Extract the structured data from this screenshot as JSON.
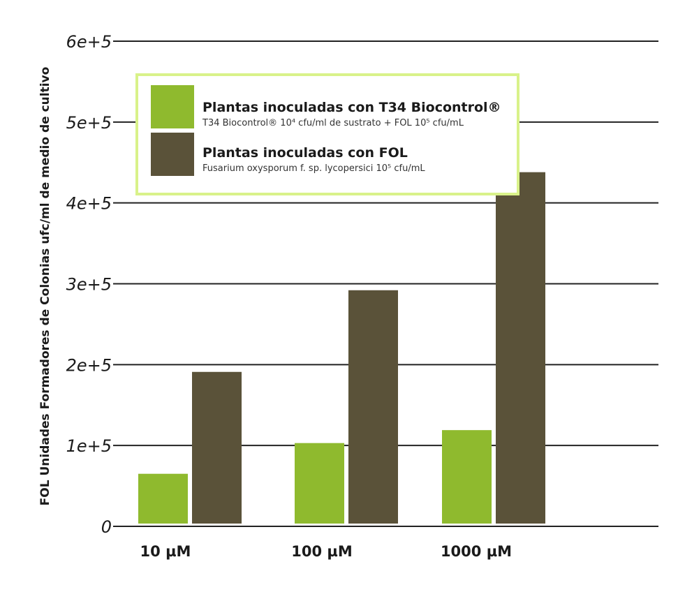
{
  "chart_data": {
    "type": "bar",
    "categories": [
      "10 µM",
      "100 µM",
      "1000 µM"
    ],
    "series": [
      {
        "name": "Plantas inoculadas con T34 Biocontrol®",
        "color": "#8fba2e",
        "values": [
          65000,
          103000,
          119000
        ]
      },
      {
        "name": "Plantas inoculadas con FOL",
        "color": "#5a5239",
        "values": [
          191000,
          292000,
          438000
        ]
      }
    ],
    "yticks": [
      "0",
      "1e+5",
      "2e+5",
      "3e+5",
      "4e+5",
      "5e+5",
      "6e+5"
    ],
    "ylim": [
      0,
      600000
    ],
    "ylabel": "FOL Unidades Formadores de Colonias ufc/ml de medio de cultivo",
    "xlabel": "",
    "grid": true,
    "legend_position": "top-left",
    "legend_border_color": "#d9f28a",
    "legend": [
      {
        "title": "Plantas inoculadas con T34 Biocontrol®",
        "subtitle": "T34 Biocontrol® 10⁴ cfu/ml de sustrato + FOL 10⁵ cfu/mL"
      },
      {
        "title": "Plantas inoculadas con FOL",
        "subtitle": "Fusarium oxysporum f. sp. lycopersici 10⁵ cfu/mL"
      }
    ]
  }
}
